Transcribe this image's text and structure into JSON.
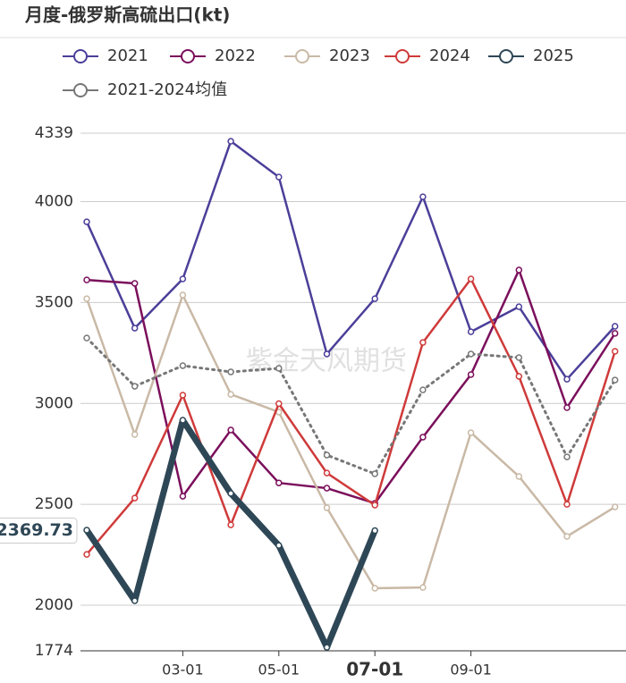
{
  "chart_data": {
    "type": "line",
    "title": "月度-俄罗斯高硫出口(kt)",
    "watermark": "紫金天风期货",
    "categories": [
      null,
      null,
      "03-01",
      null,
      "05-01",
      null,
      "07-01",
      null,
      "09-01",
      null,
      null,
      null
    ],
    "active_index": 6,
    "pointer_value": 2369.73,
    "ylim": [
      1774,
      4339
    ],
    "yticks": [
      1774,
      2000,
      2500,
      3000,
      3500,
      4000,
      4339
    ],
    "grid": true,
    "series": [
      {
        "name": "2021",
        "color": "#4b3f99",
        "values": [
          3900,
          3373,
          3617,
          4299,
          4122,
          3245,
          3519,
          4024,
          3355,
          3479,
          3120,
          3382
        ]
      },
      {
        "name": "2022",
        "color": "#7b0f5c",
        "values": [
          3612,
          3595,
          2540,
          2868,
          2606,
          2580,
          2505,
          2833,
          3143,
          3661,
          2979,
          3347
        ]
      },
      {
        "name": "2023",
        "color": "#c9b9a6",
        "values": [
          3519,
          2846,
          3537,
          3045,
          2957,
          2483,
          2084,
          2088,
          2855,
          2638,
          2341,
          2487
        ]
      },
      {
        "name": "2024",
        "color": "#cf3a3a",
        "values": [
          2252,
          2531,
          3041,
          2398,
          2999,
          2655,
          2496,
          3302,
          3617,
          3134,
          2500,
          3258
        ]
      },
      {
        "name": "2025",
        "color": "#2e4756",
        "bold": true,
        "values": [
          2372,
          2022,
          2917,
          2554,
          2296,
          1791,
          2369.73,
          null,
          null,
          null,
          null,
          null
        ]
      },
      {
        "name": "2021-2024均值",
        "color": "#777777",
        "dotted": true,
        "values": [
          3324,
          3085,
          3187,
          3156,
          3174,
          2744,
          2651,
          3067,
          3245,
          3227,
          2735,
          3116
        ]
      }
    ]
  }
}
